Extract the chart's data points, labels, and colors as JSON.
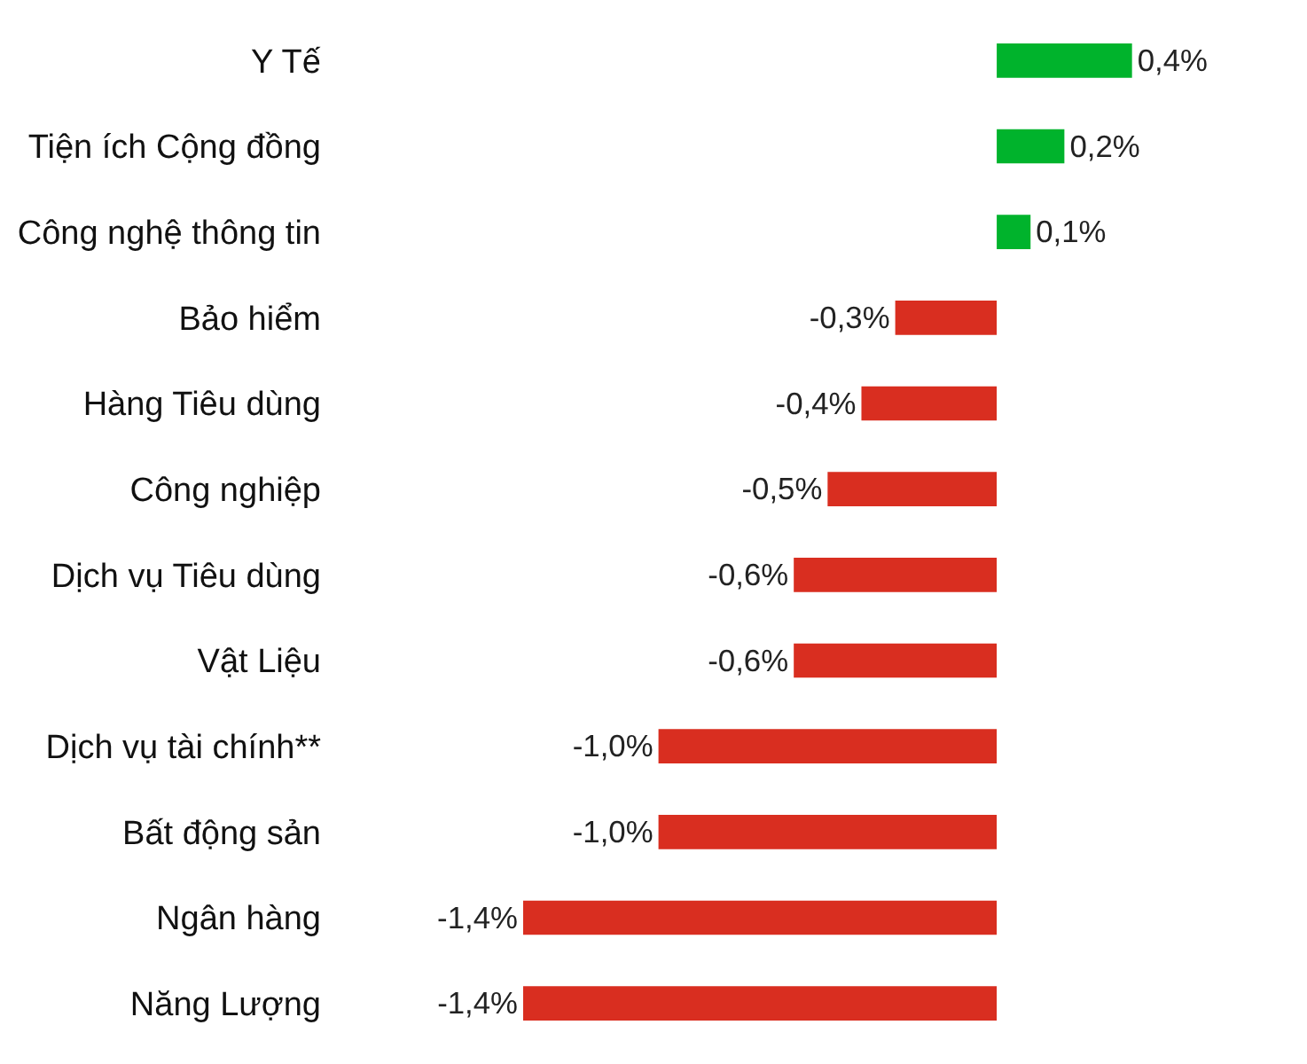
{
  "chart_data": {
    "type": "bar",
    "orientation": "horizontal",
    "categories": [
      "Y Tế",
      "Tiện ích Cộng đồng",
      "Công nghệ thông tin",
      "Bảo hiểm",
      "Hàng Tiêu dùng",
      "Công nghiệp",
      "Dịch vụ Tiêu dùng",
      "Vật Liệu",
      "Dịch vụ tài chính**",
      "Bất động sản",
      "Ngân hàng",
      "Năng Lượng"
    ],
    "values": [
      0.4,
      0.2,
      0.1,
      -0.3,
      -0.4,
      -0.5,
      -0.6,
      -0.6,
      -1.0,
      -1.0,
      -1.4,
      -1.4
    ],
    "colors": [
      "#00b32c",
      "#00b32c",
      "#00b32c",
      "#d92e20",
      "#d92e20",
      "#d92e20",
      "#d92e20",
      "#d92e20",
      "#d92e20",
      "#d92e20",
      "#d92e20",
      "#d92e20"
    ],
    "value_labels": [
      "0,4%",
      "0,2%",
      "0,1%",
      "-0,3%",
      "-0,4%",
      "-0,5%",
      "-0,6%",
      "-0,6%",
      "-1,0%",
      "-1,0%",
      "-1,4%",
      "-1,4%"
    ],
    "legend": false
  }
}
